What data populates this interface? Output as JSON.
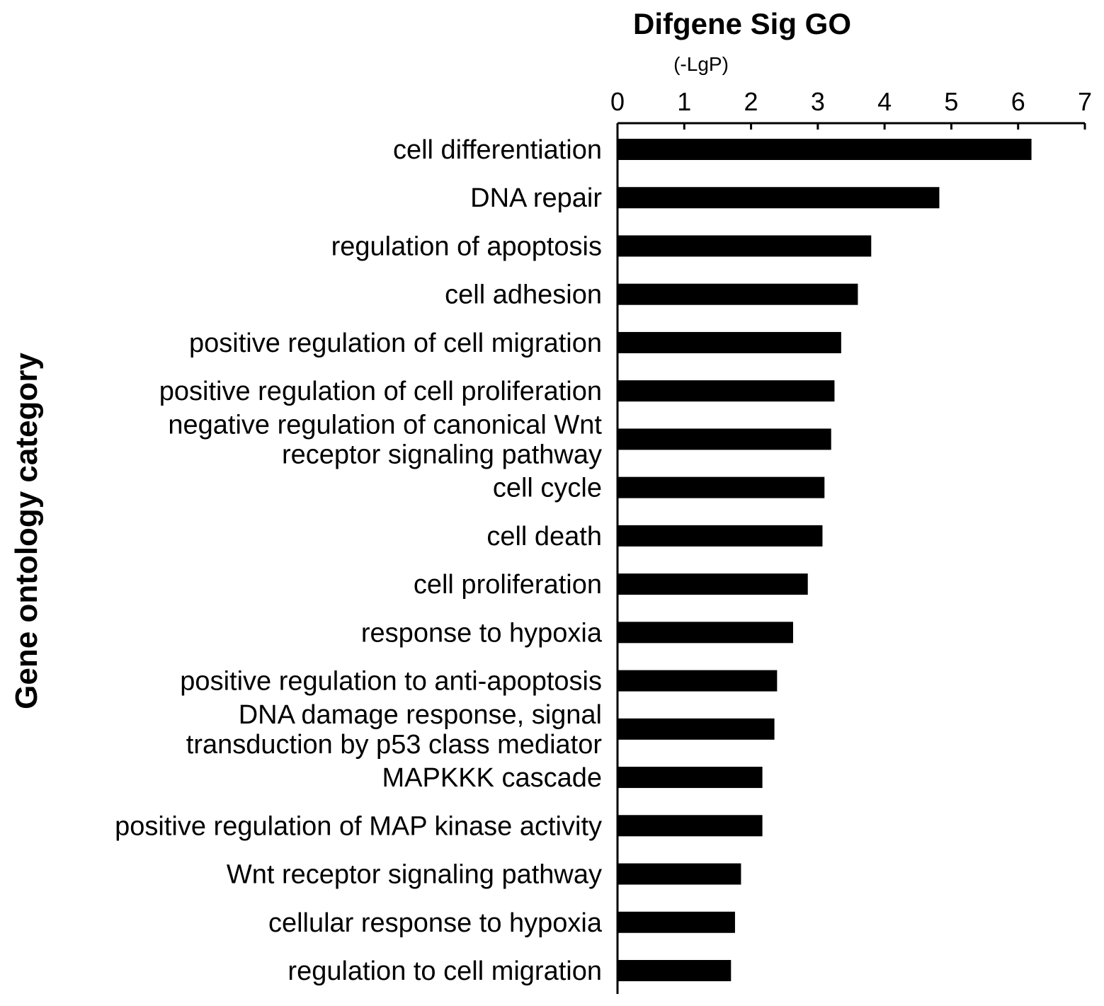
{
  "chart_data": {
    "type": "bar",
    "orientation": "horizontal",
    "title": "Difgene Sig GO",
    "xlabel": "(-LgP)",
    "ylabel": "Gene ontology category",
    "xlim": [
      0,
      7
    ],
    "xticks": [
      "0",
      "1",
      "2",
      "3",
      "4",
      "5",
      "6",
      "7"
    ],
    "x_axis_position": "top",
    "grid": false,
    "legend": "none",
    "bar_color": "#000000",
    "categories": [
      [
        "cell differentiation"
      ],
      [
        "DNA repair"
      ],
      [
        "regulation of apoptosis"
      ],
      [
        "cell adhesion"
      ],
      [
        "positive regulation of cell migration"
      ],
      [
        "positive regulation of cell proliferation"
      ],
      [
        "negative regulation of canonical Wnt",
        "receptor signaling pathway"
      ],
      [
        "cell cycle"
      ],
      [
        "cell death"
      ],
      [
        "cell proliferation"
      ],
      [
        "response to hypoxia"
      ],
      [
        "positive regulation to anti-apoptosis"
      ],
      [
        "DNA damage response, signal",
        "transduction by p53 class mediator"
      ],
      [
        "MAPKKK cascade"
      ],
      [
        "positive regulation of MAP kinase activity"
      ],
      [
        "Wnt receptor signaling pathway"
      ],
      [
        "cellular response to hypoxia"
      ],
      [
        "regulation to cell migration"
      ]
    ],
    "values": [
      6.2,
      4.82,
      3.8,
      3.6,
      3.35,
      3.25,
      3.2,
      3.1,
      3.07,
      2.85,
      2.63,
      2.39,
      2.35,
      2.17,
      2.17,
      1.85,
      1.76,
      1.7
    ]
  }
}
